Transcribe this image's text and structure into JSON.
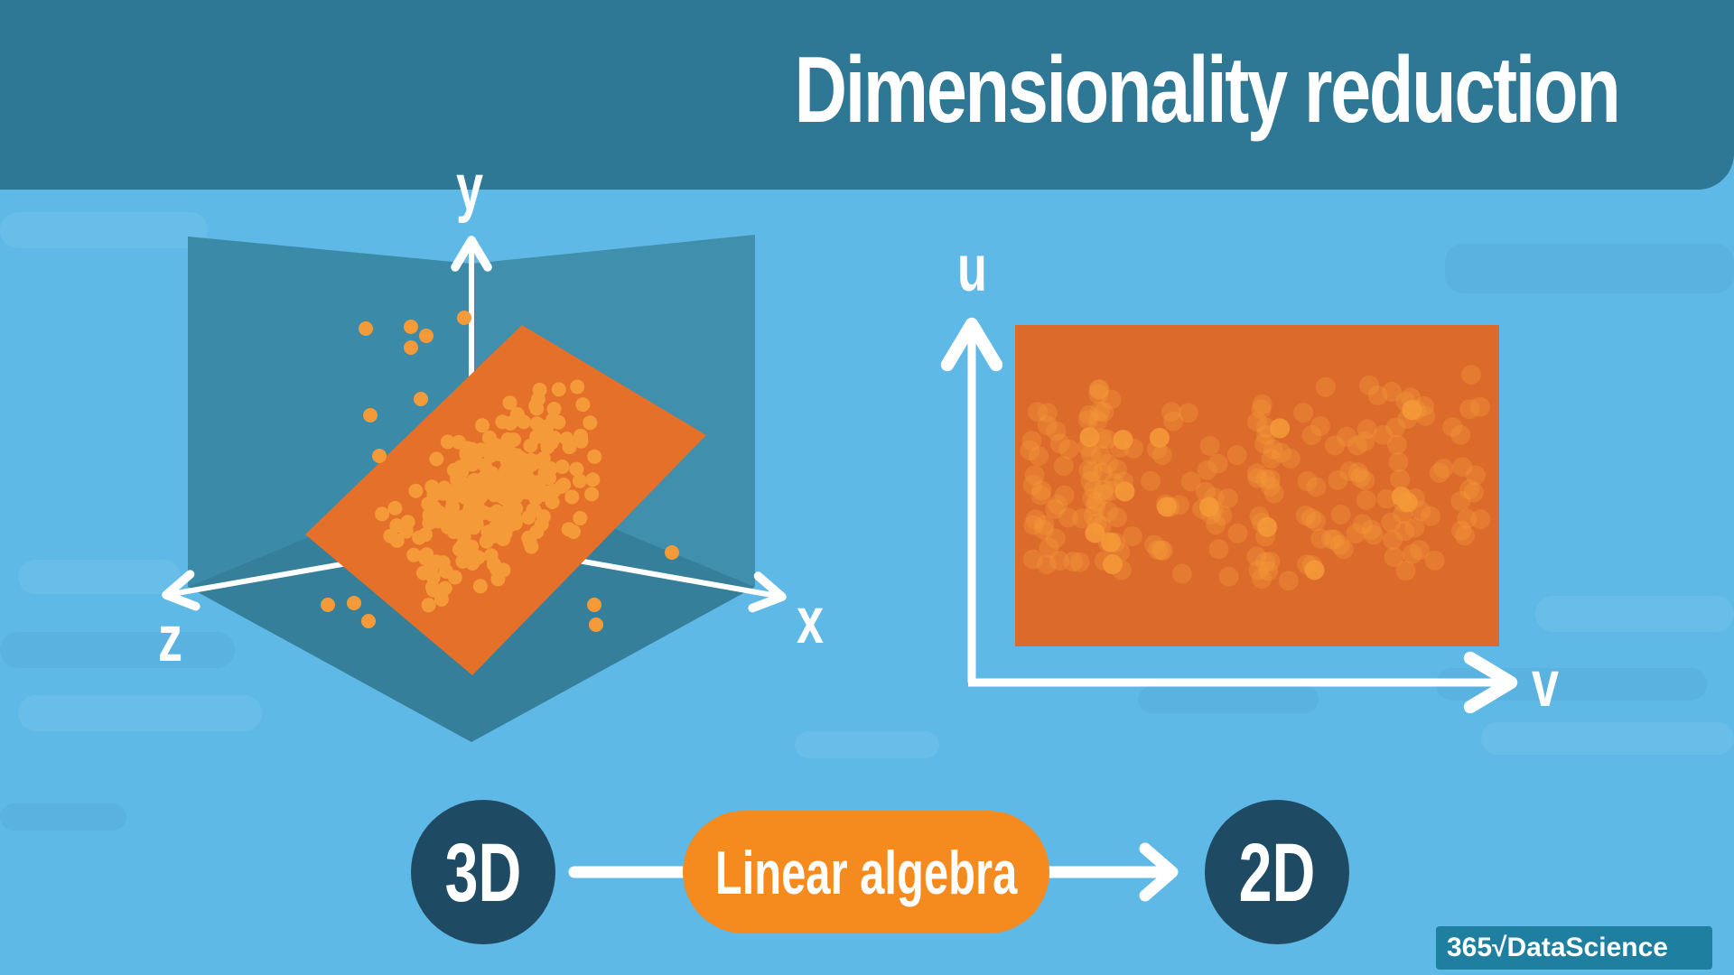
{
  "title": "Dimensionality reduction",
  "left_plot": {
    "axes": {
      "y": "y",
      "x": "x",
      "z": "z"
    }
  },
  "right_plot": {
    "axes": {
      "u": "u",
      "v": "v"
    }
  },
  "flow": {
    "source": "3D",
    "method": "Linear algebra",
    "target": "2D"
  },
  "logo": "365√DataScience",
  "colors": {
    "background": "#5fb9e6",
    "header": "#2e7795",
    "plane_dark": "#3a8aa8",
    "orange_plane": "#e4702a",
    "dots": "#f59a38",
    "pill": "#f58a1e",
    "circle": "#1f4a63",
    "white": "#ffffff"
  }
}
